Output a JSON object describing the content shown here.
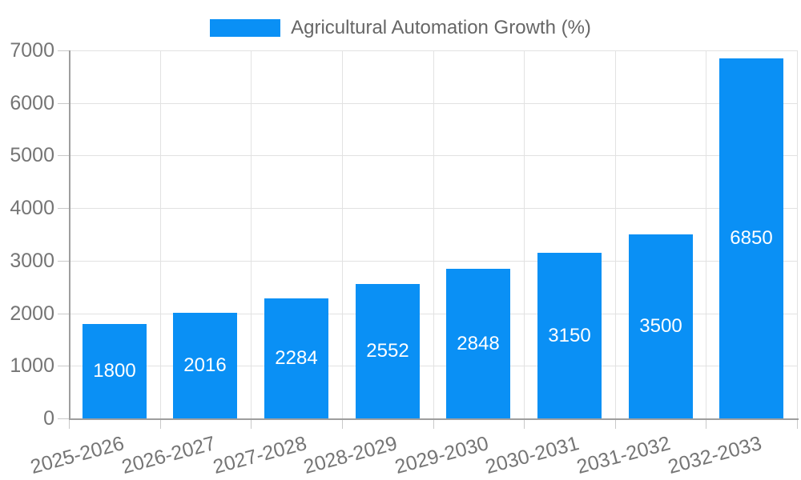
{
  "chart_data": {
    "type": "bar",
    "title": "",
    "series_name": "Agricultural Automation Growth (%)",
    "categories": [
      "2025-2026",
      "2026-2027",
      "2027-2028",
      "2028-2029",
      "2029-2030",
      "2030-2031",
      "2031-2032",
      "2032-2033"
    ],
    "values": [
      1800,
      2016,
      2284,
      2552,
      2848,
      3150,
      3500,
      6850
    ],
    "bar_labels": [
      "1800",
      "2016",
      "2284",
      "2552",
      "2848",
      "3150",
      "3500",
      "6850"
    ],
    "ylim": [
      0,
      7000
    ],
    "ytick_step": 1000,
    "ytick_labels": [
      "0",
      "1000",
      "2000",
      "3000",
      "4000",
      "5000",
      "6000",
      "7000"
    ],
    "grid": true,
    "legend_position": "top-center",
    "x_label_rotation_deg": -15,
    "bar_label_position": "inside-center",
    "colors": {
      "bar": "#0a90f5",
      "bar_label": "#ffffff",
      "grid": "#e2e2e2",
      "tick": "#c9c9c9",
      "axis": "#9e9e9e",
      "tick_label": "#757575",
      "legend_text": "#666666",
      "background": "#ffffff"
    }
  }
}
